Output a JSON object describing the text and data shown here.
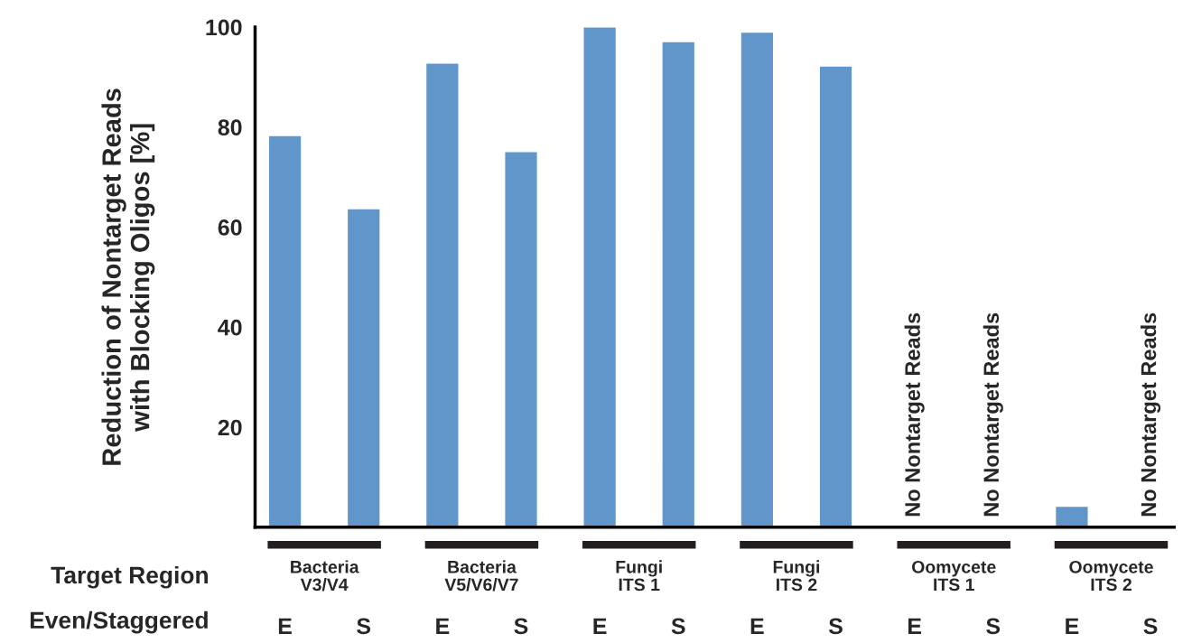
{
  "chart_data": {
    "type": "bar",
    "ylabel": "Reduction of Nontarget Reads\nwith Blocking Oligos [%]",
    "categories": [
      "E",
      "S",
      "E",
      "S",
      "E",
      "S",
      "E",
      "S",
      "E",
      "S",
      "E",
      "S"
    ],
    "values": [
      78.3,
      63.7,
      92.8,
      75.1,
      100,
      97.1,
      99,
      92.2,
      null,
      null,
      4.2,
      null
    ],
    "color": "#6096c9",
    "ylim": [
      0,
      100
    ],
    "yticks": [
      20,
      40,
      60,
      80,
      100
    ],
    "grid": false,
    "annotations": [
      "Target Region",
      "Even/Staggered",
      "Bacteria\nV3/V4",
      "Bacteria\nV5/V6/V7",
      "Fungi\nITS 1",
      "Fungi\nITS 2",
      "Oomycete\nITS 1",
      "Oomycete\nITS 2",
      "No Nontarget Reads",
      "No Nontarget Reads",
      "No Nontarget Reads"
    ]
  }
}
